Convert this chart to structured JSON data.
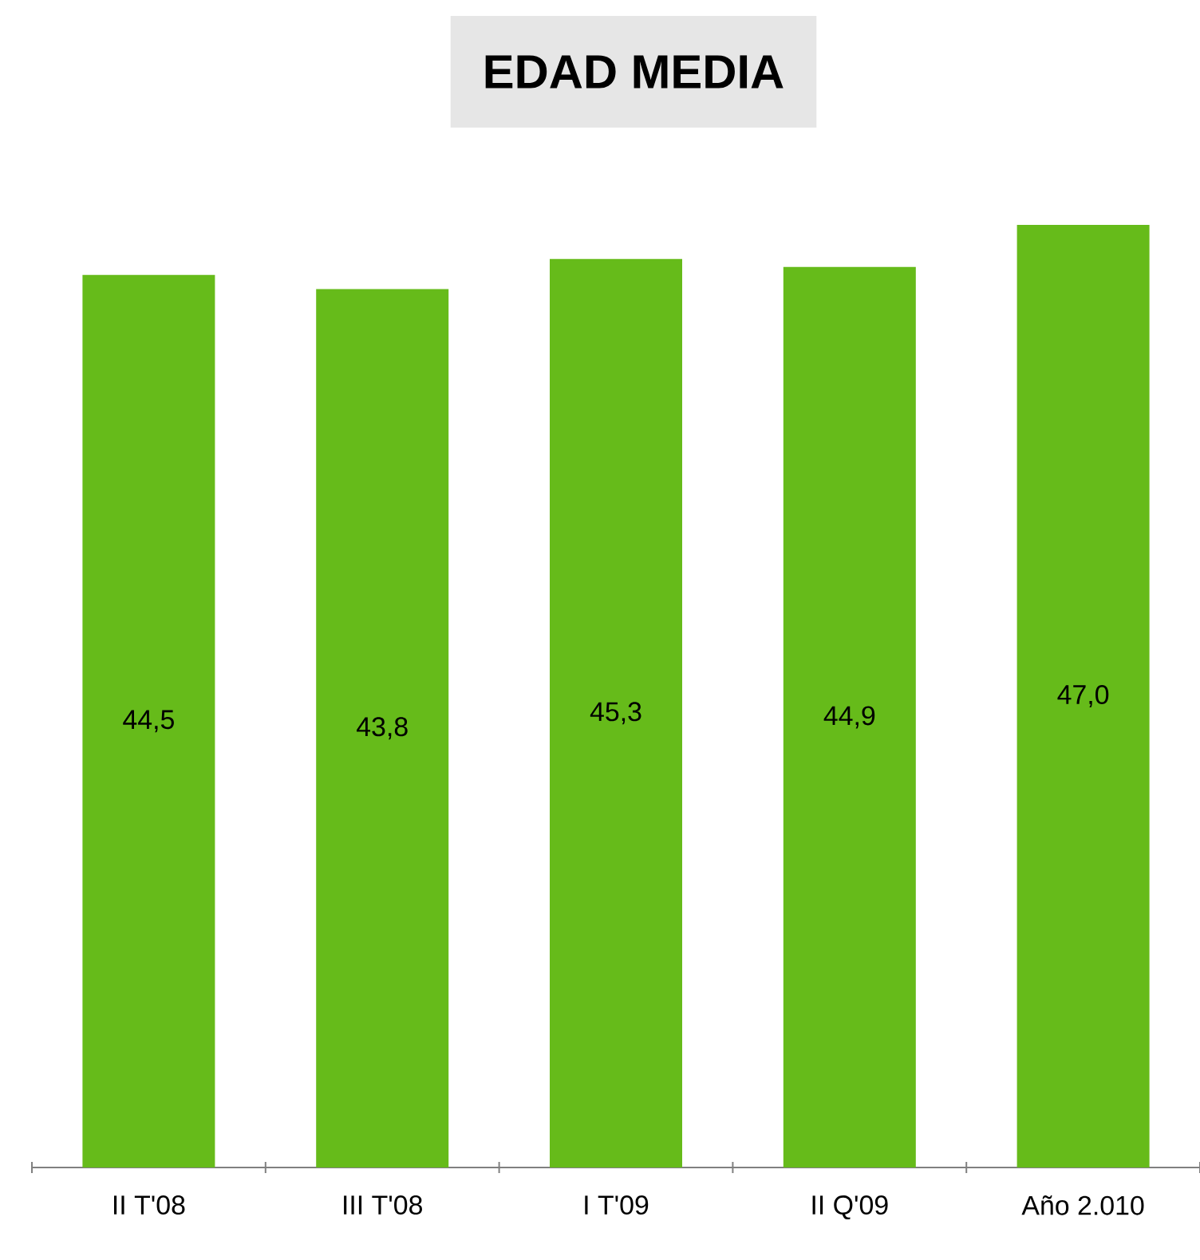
{
  "chart_data": {
    "type": "bar",
    "title": "EDAD MEDIA",
    "categories": [
      "II T'08",
      "III T'08",
      "I T'09",
      "II Q'09",
      "Año 2.010"
    ],
    "values": [
      44.5,
      43.8,
      45.3,
      44.9,
      47.0
    ],
    "value_labels": [
      "44,5",
      "43,8",
      "45,3",
      "44,9",
      "47,0"
    ],
    "color": "#66bb1a"
  }
}
